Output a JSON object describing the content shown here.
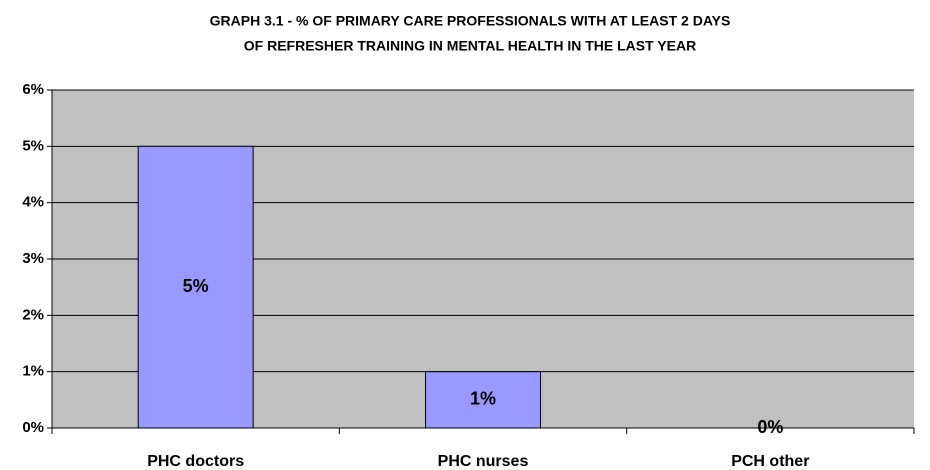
{
  "chart_data": {
    "type": "bar",
    "title": [
      "GRAPH 3.1 - % OF PRIMARY CARE PROFESSIONALS WITH AT LEAST 2 DAYS",
      "OF REFRESHER TRAINING IN MENTAL HEALTH IN THE LAST YEAR"
    ],
    "categories": [
      "PHC doctors",
      "PHC nurses",
      "PCH other"
    ],
    "values": [
      5,
      1,
      0
    ],
    "value_labels": [
      "5%",
      "1%",
      "0%"
    ],
    "color": "#9999ff",
    "ylim": [
      0,
      6
    ],
    "yticks": [
      {
        "value": 0,
        "label": "0%"
      },
      {
        "value": 1,
        "label": "1%"
      },
      {
        "value": 2,
        "label": "2%"
      },
      {
        "value": 3,
        "label": "3%"
      },
      {
        "value": 4,
        "label": "4%"
      },
      {
        "value": 5,
        "label": "5%"
      },
      {
        "value": 6,
        "label": "6%"
      }
    ],
    "grid": true
  }
}
